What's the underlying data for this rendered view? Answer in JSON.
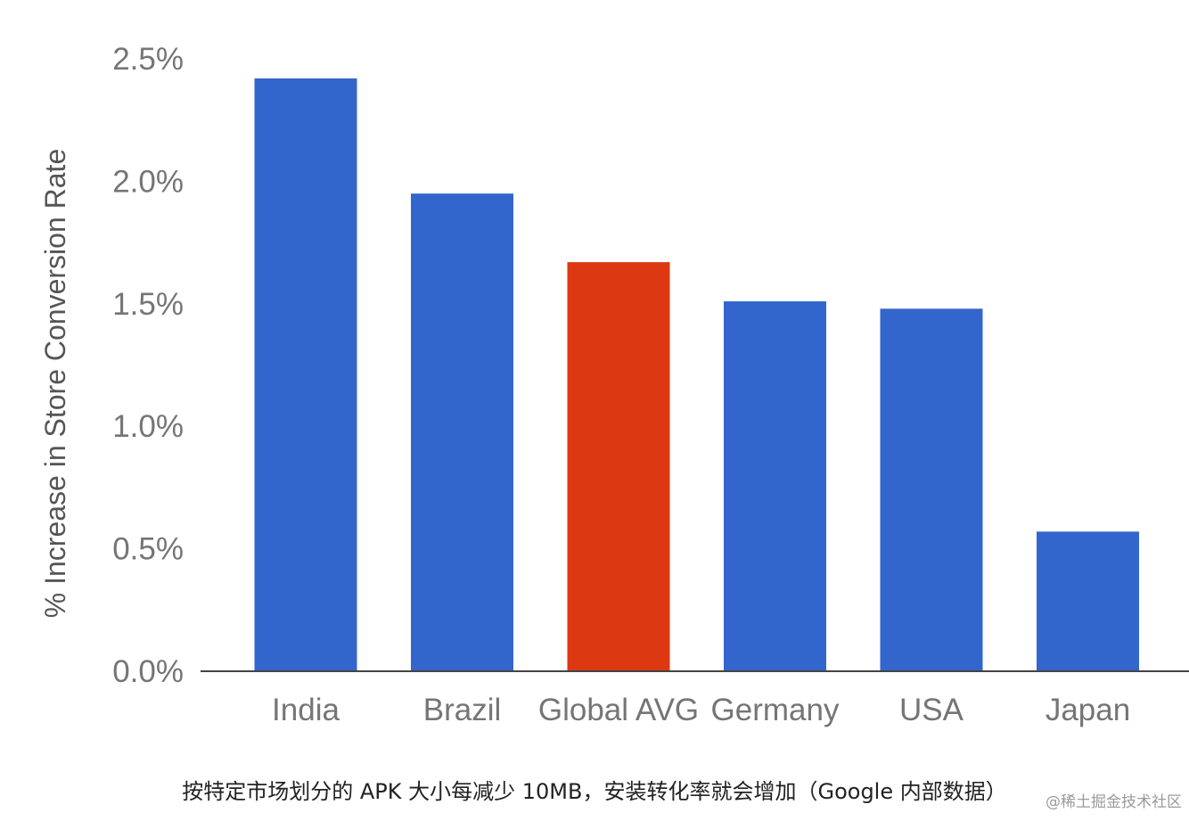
{
  "caption": "按特定市场划分的 APK 大小每减少 10MB，安装转化率就会增加（Google 内部数据）",
  "watermark": "@稀土掘金技术社区",
  "colors": {
    "bar": "#3366cc",
    "highlight": "#dc3912",
    "axis_text": "#757575",
    "axis_line": "#444444"
  },
  "chart_data": {
    "type": "bar",
    "title": "",
    "xlabel": "",
    "ylabel": "% Increase in Store Conversion Rate",
    "categories": [
      "India",
      "Brazil",
      "Global AVG",
      "Germany",
      "USA",
      "Japan"
    ],
    "values": [
      2.42,
      1.95,
      1.67,
      1.51,
      1.48,
      0.57
    ],
    "highlight_category": "Global AVG",
    "ylim": [
      0,
      2.5
    ],
    "yticks": [
      0.0,
      0.5,
      1.0,
      1.5,
      2.0,
      2.5
    ],
    "ytick_labels": [
      "0.0%",
      "0.5%",
      "1.0%",
      "1.5%",
      "2.0%",
      "2.5%"
    ],
    "grid": false,
    "legend": "none"
  }
}
